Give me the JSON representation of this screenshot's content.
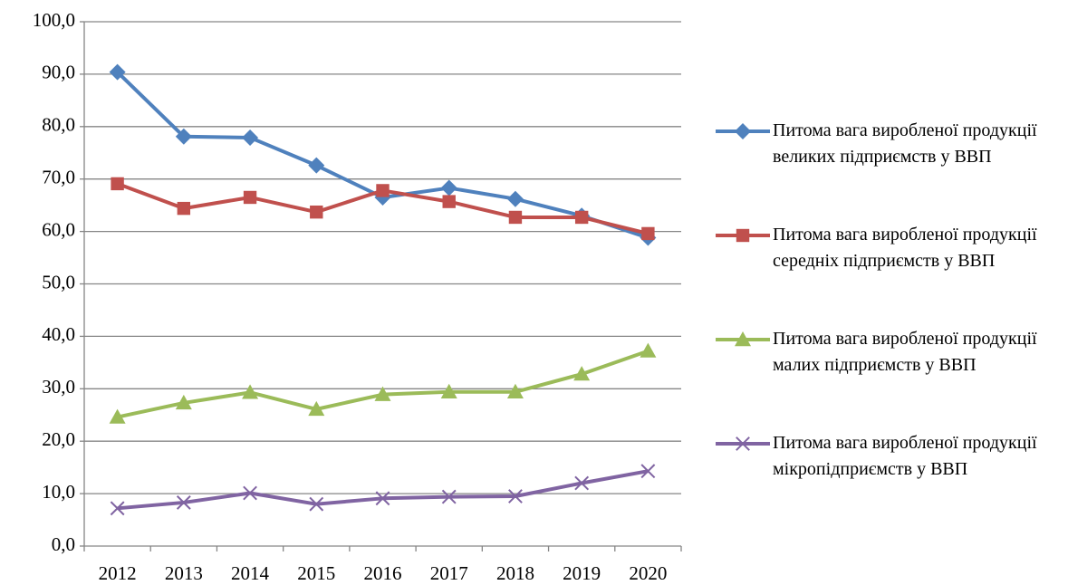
{
  "chart_data": {
    "type": "line",
    "categories": [
      "2012",
      "2013",
      "2014",
      "2015",
      "2016",
      "2017",
      "2018",
      "2019",
      "2020"
    ],
    "series": [
      {
        "name": "Питома вага виробленої продукції великих підприємств у ВВП",
        "color": "#4f81bd",
        "marker": "diamond",
        "values": [
          90.4,
          78.1,
          77.9,
          72.6,
          66.5,
          68.3,
          66.2,
          63.0,
          58.8
        ]
      },
      {
        "name": "Питома вага виробленої продукції середніх підприємств у ВВП",
        "color": "#c0504d",
        "marker": "square",
        "values": [
          69.1,
          64.4,
          66.5,
          63.7,
          67.8,
          65.7,
          62.7,
          62.7,
          59.6
        ]
      },
      {
        "name": "Питома вага виробленої продукції малих підприємств у ВВП",
        "color": "#9bbb59",
        "marker": "triangle",
        "values": [
          24.6,
          27.3,
          29.3,
          26.1,
          28.9,
          29.4,
          29.4,
          32.8,
          37.2
        ]
      },
      {
        "name": "Питома вага виробленої продукції мікропідприємств у ВВП",
        "color": "#8064a2",
        "marker": "x",
        "values": [
          7.2,
          8.3,
          10.1,
          8.0,
          9.1,
          9.4,
          9.5,
          12.0,
          14.3
        ]
      }
    ],
    "ylim": [
      0,
      100
    ],
    "yticks": [
      {
        "value": 0,
        "label": "0,0"
      },
      {
        "value": 10,
        "label": "10,0"
      },
      {
        "value": 20,
        "label": "20,0"
      },
      {
        "value": 30,
        "label": "30,0"
      },
      {
        "value": 40,
        "label": "40,0"
      },
      {
        "value": 50,
        "label": "50,0"
      },
      {
        "value": 60,
        "label": "60,0"
      },
      {
        "value": 70,
        "label": "70,0"
      },
      {
        "value": 80,
        "label": "80,0"
      },
      {
        "value": 90,
        "label": "90,0"
      },
      {
        "value": 100,
        "label": "100,0"
      }
    ],
    "grid": true,
    "legend": "right"
  }
}
